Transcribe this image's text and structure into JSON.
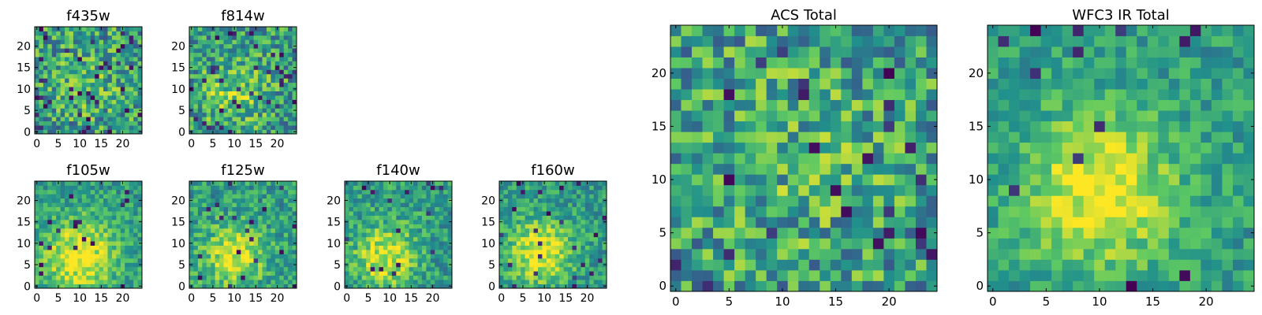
{
  "chart_data": [
    {
      "type": "heatmap",
      "title": "f435w",
      "grid_size": 25,
      "xticks": [
        "0",
        "5",
        "10",
        "15",
        "20"
      ],
      "yticks": [
        "0",
        "5",
        "10",
        "15",
        "20"
      ],
      "seed": 11,
      "noise": 0.3,
      "blob": {
        "cx": 12,
        "cy": 12,
        "sigma": 6,
        "amp": 0.1
      },
      "dark_fraction": 0.06
    },
    {
      "type": "heatmap",
      "title": "f814w",
      "grid_size": 25,
      "xticks": [
        "0",
        "5",
        "10",
        "15",
        "20"
      ],
      "yticks": [
        "0",
        "5",
        "10",
        "15",
        "20"
      ],
      "seed": 23,
      "noise": 0.28,
      "blob": {
        "cx": 10,
        "cy": 9,
        "sigma": 5,
        "amp": 0.25
      },
      "dark_fraction": 0.05
    },
    {
      "type": "heatmap",
      "title": "f105w",
      "grid_size": 25,
      "xticks": [
        "0",
        "5",
        "10",
        "15",
        "20"
      ],
      "yticks": [
        "0",
        "5",
        "10",
        "15",
        "20"
      ],
      "seed": 37,
      "noise": 0.18,
      "blob": {
        "cx": 10,
        "cy": 7,
        "sigma": 6,
        "amp": 0.45
      },
      "dark_fraction": 0.03
    },
    {
      "type": "heatmap",
      "title": "f125w",
      "grid_size": 25,
      "xticks": [
        "0",
        "5",
        "10",
        "15",
        "20"
      ],
      "yticks": [
        "0",
        "5",
        "10",
        "15",
        "20"
      ],
      "seed": 41,
      "noise": 0.2,
      "blob": {
        "cx": 10,
        "cy": 7,
        "sigma": 5,
        "amp": 0.4
      },
      "dark_fraction": 0.03
    },
    {
      "type": "heatmap",
      "title": "f140w",
      "grid_size": 25,
      "xticks": [
        "0",
        "5",
        "10",
        "15",
        "20"
      ],
      "yticks": [
        "0",
        "5",
        "10",
        "15",
        "20"
      ],
      "seed": 53,
      "noise": 0.2,
      "blob": {
        "cx": 9,
        "cy": 7,
        "sigma": 5,
        "amp": 0.4
      },
      "dark_fraction": 0.03
    },
    {
      "type": "heatmap",
      "title": "f160w",
      "grid_size": 25,
      "xticks": [
        "0",
        "5",
        "10",
        "15",
        "20"
      ],
      "yticks": [
        "0",
        "5",
        "10",
        "15",
        "20"
      ],
      "seed": 67,
      "noise": 0.18,
      "blob": {
        "cx": 9,
        "cy": 8,
        "sigma": 5,
        "amp": 0.45
      },
      "dark_fraction": 0.03
    },
    {
      "type": "heatmap",
      "title": "ACS Total",
      "grid_size": 25,
      "xticks": [
        "0",
        "5",
        "10",
        "15",
        "20"
      ],
      "yticks": [
        "0",
        "5",
        "10",
        "15",
        "20"
      ],
      "seed": 79,
      "noise": 0.3,
      "blob": {
        "cx": 11,
        "cy": 12,
        "sigma": 7,
        "amp": 0.1
      },
      "dark_fraction": 0.04
    },
    {
      "type": "heatmap",
      "title": "WFC3 IR Total",
      "grid_size": 25,
      "xticks": [
        "0",
        "5",
        "10",
        "15",
        "20"
      ],
      "yticks": [
        "0",
        "5",
        "10",
        "15",
        "20"
      ],
      "seed": 97,
      "noise": 0.16,
      "blob": {
        "cx": 10,
        "cy": 9,
        "sigma": 5,
        "amp": 0.45
      },
      "dark_fraction": 0.03
    }
  ],
  "colormap": [
    "#440154",
    "#3b528b",
    "#21918c",
    "#5ec962",
    "#fde725"
  ]
}
